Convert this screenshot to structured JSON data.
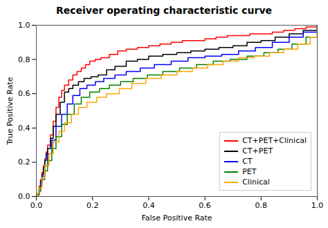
{
  "chart_data": {
    "type": "step",
    "title": "Receiver operating characteristic curve",
    "x_label": "False Positive Rate",
    "y_label": "True Positive Rate",
    "xlim": [
      0.0,
      1.0
    ],
    "ylim": [
      0.0,
      1.0
    ],
    "xticks": [
      {
        "value": 0.0,
        "label": "0.0"
      },
      {
        "value": 0.2,
        "label": "0.2"
      },
      {
        "value": 0.4,
        "label": "0.4"
      },
      {
        "value": 0.6,
        "label": "0.6"
      },
      {
        "value": 0.8,
        "label": "0.8"
      },
      {
        "value": 1.0,
        "label": "1.0"
      }
    ],
    "yticks": [
      {
        "value": 0.0,
        "label": "0.0"
      },
      {
        "value": 0.2,
        "label": "0.2"
      },
      {
        "value": 0.4,
        "label": "0.4"
      },
      {
        "value": 0.6,
        "label": "0.6"
      },
      {
        "value": 0.8,
        "label": "0.8"
      },
      {
        "value": 1.0,
        "label": "1.0"
      }
    ],
    "grid": false,
    "legend": "lower right",
    "series": [
      {
        "name": "CT+PET+Clinical",
        "color": "#ff0000",
        "x": [
          0.0,
          0.005,
          0.01,
          0.015,
          0.02,
          0.025,
          0.03,
          0.035,
          0.04,
          0.05,
          0.06,
          0.07,
          0.08,
          0.09,
          0.1,
          0.115,
          0.13,
          0.145,
          0.16,
          0.175,
          0.19,
          0.21,
          0.23,
          0.26,
          0.29,
          0.32,
          0.36,
          0.4,
          0.44,
          0.48,
          0.52,
          0.56,
          0.6,
          0.64,
          0.68,
          0.72,
          0.76,
          0.8,
          0.84,
          0.88,
          0.92,
          0.96,
          1.0
        ],
        "values": [
          0.0,
          0.02,
          0.06,
          0.1,
          0.14,
          0.18,
          0.22,
          0.26,
          0.3,
          0.36,
          0.44,
          0.52,
          0.58,
          0.62,
          0.65,
          0.68,
          0.71,
          0.73,
          0.75,
          0.77,
          0.79,
          0.8,
          0.81,
          0.83,
          0.85,
          0.86,
          0.87,
          0.88,
          0.89,
          0.9,
          0.91,
          0.91,
          0.92,
          0.93,
          0.94,
          0.94,
          0.95,
          0.95,
          0.96,
          0.97,
          0.98,
          0.99,
          1.0
        ]
      },
      {
        "name": "CT+PET",
        "color": "#000000",
        "x": [
          0.0,
          0.005,
          0.01,
          0.015,
          0.02,
          0.025,
          0.03,
          0.035,
          0.04,
          0.05,
          0.06,
          0.07,
          0.085,
          0.1,
          0.115,
          0.13,
          0.15,
          0.17,
          0.195,
          0.22,
          0.25,
          0.28,
          0.32,
          0.36,
          0.4,
          0.45,
          0.5,
          0.55,
          0.6,
          0.65,
          0.7,
          0.75,
          0.8,
          0.85,
          0.9,
          0.95,
          1.0
        ],
        "values": [
          0.0,
          0.02,
          0.05,
          0.09,
          0.13,
          0.17,
          0.21,
          0.25,
          0.28,
          0.34,
          0.41,
          0.48,
          0.55,
          0.61,
          0.63,
          0.65,
          0.67,
          0.69,
          0.7,
          0.71,
          0.74,
          0.76,
          0.79,
          0.8,
          0.82,
          0.83,
          0.84,
          0.85,
          0.86,
          0.87,
          0.88,
          0.9,
          0.91,
          0.93,
          0.95,
          0.97,
          1.0
        ]
      },
      {
        "name": "CT",
        "color": "#0000ff",
        "x": [
          0.0,
          0.005,
          0.01,
          0.015,
          0.02,
          0.03,
          0.04,
          0.055,
          0.07,
          0.09,
          0.11,
          0.13,
          0.155,
          0.18,
          0.21,
          0.24,
          0.28,
          0.32,
          0.37,
          0.42,
          0.48,
          0.54,
          0.6,
          0.66,
          0.72,
          0.78,
          0.84,
          0.9,
          0.95,
          1.0
        ],
        "values": [
          0.0,
          0.01,
          0.04,
          0.08,
          0.12,
          0.18,
          0.25,
          0.33,
          0.41,
          0.48,
          0.54,
          0.59,
          0.63,
          0.65,
          0.67,
          0.69,
          0.71,
          0.73,
          0.75,
          0.77,
          0.79,
          0.81,
          0.82,
          0.83,
          0.85,
          0.87,
          0.9,
          0.93,
          0.96,
          1.0
        ]
      },
      {
        "name": "PET",
        "color": "#008000",
        "x": [
          0.0,
          0.005,
          0.01,
          0.015,
          0.02,
          0.03,
          0.04,
          0.055,
          0.07,
          0.09,
          0.11,
          0.135,
          0.16,
          0.19,
          0.225,
          0.26,
          0.3,
          0.345,
          0.395,
          0.45,
          0.51,
          0.57,
          0.63,
          0.69,
          0.75,
          0.81,
          0.86,
          0.91,
          0.96,
          1.0
        ],
        "values": [
          0.0,
          0.01,
          0.03,
          0.06,
          0.1,
          0.15,
          0.21,
          0.28,
          0.35,
          0.42,
          0.48,
          0.54,
          0.58,
          0.61,
          0.63,
          0.65,
          0.67,
          0.69,
          0.71,
          0.73,
          0.75,
          0.77,
          0.79,
          0.8,
          0.82,
          0.84,
          0.86,
          0.89,
          0.93,
          1.0
        ]
      },
      {
        "name": "Clinical",
        "color": "#ffa500",
        "x": [
          0.0,
          0.005,
          0.01,
          0.02,
          0.03,
          0.045,
          0.06,
          0.08,
          0.1,
          0.125,
          0.15,
          0.18,
          0.215,
          0.25,
          0.295,
          0.34,
          0.39,
          0.445,
          0.5,
          0.555,
          0.61,
          0.665,
          0.72,
          0.775,
          0.83,
          0.88,
          0.93,
          0.975,
          1.0
        ],
        "values": [
          0.0,
          0.02,
          0.05,
          0.11,
          0.18,
          0.25,
          0.32,
          0.38,
          0.43,
          0.48,
          0.52,
          0.55,
          0.58,
          0.6,
          0.63,
          0.66,
          0.69,
          0.71,
          0.73,
          0.75,
          0.77,
          0.79,
          0.81,
          0.82,
          0.84,
          0.86,
          0.89,
          0.93,
          1.0
        ]
      }
    ]
  }
}
